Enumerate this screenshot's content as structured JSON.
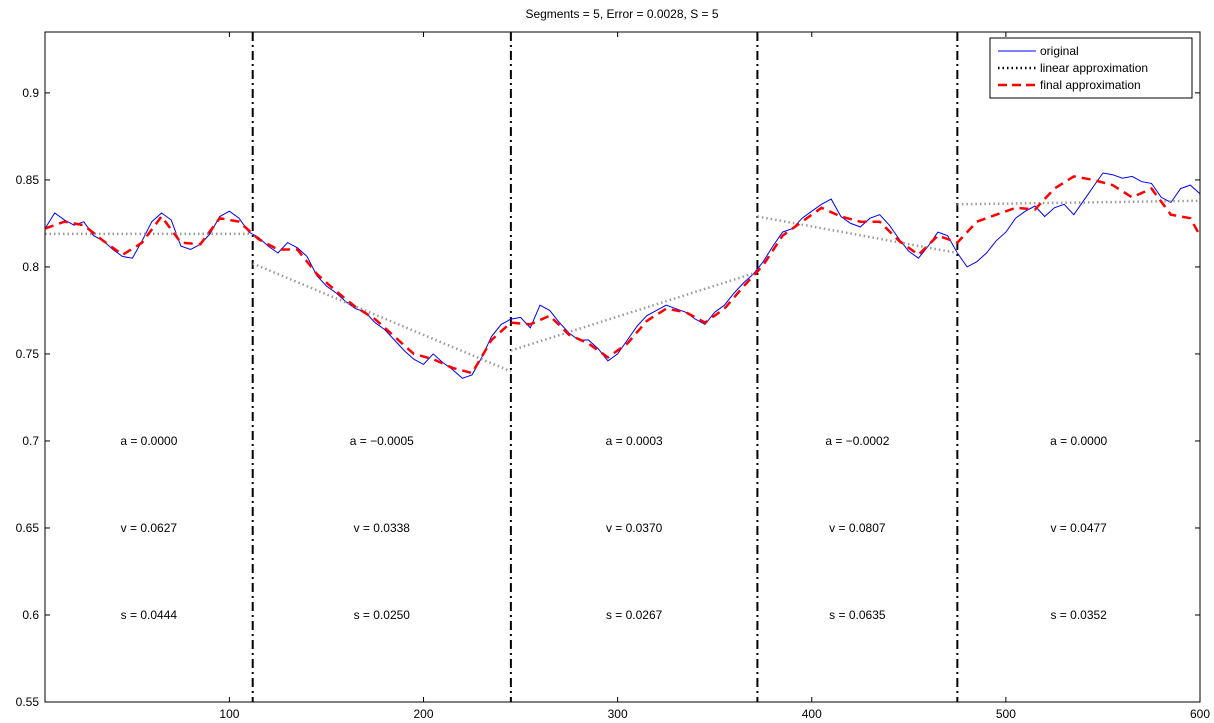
{
  "chart_data": {
    "type": "line",
    "title": "Segments = 5,  Error = 0.0028, S = 5",
    "xlabel": "",
    "ylabel": "",
    "xlim": [
      5,
      600
    ],
    "ylim": [
      0.55,
      0.935
    ],
    "xticks": [
      100,
      200,
      300,
      400,
      500,
      600
    ],
    "xtick_labels": [
      "100",
      "200",
      "300",
      "400",
      "500",
      "600"
    ],
    "yticks": [
      0.55,
      0.6,
      0.65,
      0.7,
      0.75,
      0.8,
      0.85,
      0.9
    ],
    "ytick_labels": [
      "0.55",
      "0.6",
      "0.65",
      "0.7",
      "0.75",
      "0.8",
      "0.85",
      "0.9"
    ],
    "grid": false,
    "legend_position": "top-right",
    "segment_boundaries": [
      112,
      245,
      372,
      475
    ],
    "series": [
      {
        "name": "original",
        "color": "#0000ff",
        "style": "solid",
        "x": [
          5,
          10,
          15,
          20,
          25,
          30,
          35,
          40,
          45,
          50,
          55,
          60,
          65,
          70,
          75,
          80,
          85,
          90,
          95,
          100,
          105,
          110,
          115,
          120,
          125,
          130,
          135,
          140,
          145,
          150,
          155,
          160,
          165,
          170,
          175,
          180,
          185,
          190,
          195,
          200,
          205,
          210,
          215,
          220,
          225,
          230,
          235,
          240,
          245,
          250,
          255,
          260,
          265,
          270,
          275,
          280,
          285,
          290,
          295,
          300,
          305,
          310,
          315,
          320,
          325,
          330,
          335,
          340,
          345,
          350,
          355,
          360,
          365,
          370,
          375,
          380,
          385,
          390,
          395,
          400,
          405,
          410,
          415,
          420,
          425,
          430,
          435,
          440,
          445,
          450,
          455,
          460,
          465,
          470,
          475,
          480,
          485,
          490,
          495,
          500,
          505,
          510,
          515,
          520,
          525,
          530,
          535,
          540,
          545,
          550,
          555,
          560,
          565,
          570,
          575,
          580,
          585,
          590,
          595,
          600
        ],
        "y": [
          0.822,
          0.831,
          0.827,
          0.824,
          0.826,
          0.818,
          0.815,
          0.81,
          0.806,
          0.805,
          0.815,
          0.826,
          0.831,
          0.827,
          0.812,
          0.81,
          0.813,
          0.819,
          0.829,
          0.832,
          0.828,
          0.82,
          0.817,
          0.812,
          0.808,
          0.814,
          0.811,
          0.806,
          0.795,
          0.789,
          0.785,
          0.78,
          0.776,
          0.774,
          0.768,
          0.764,
          0.758,
          0.752,
          0.747,
          0.744,
          0.75,
          0.745,
          0.741,
          0.736,
          0.738,
          0.748,
          0.76,
          0.767,
          0.77,
          0.771,
          0.765,
          0.778,
          0.775,
          0.768,
          0.762,
          0.758,
          0.758,
          0.753,
          0.746,
          0.75,
          0.758,
          0.766,
          0.772,
          0.775,
          0.778,
          0.776,
          0.774,
          0.77,
          0.767,
          0.774,
          0.778,
          0.785,
          0.791,
          0.796,
          0.803,
          0.812,
          0.82,
          0.822,
          0.828,
          0.832,
          0.836,
          0.839,
          0.829,
          0.825,
          0.823,
          0.828,
          0.83,
          0.824,
          0.816,
          0.809,
          0.805,
          0.812,
          0.82,
          0.818,
          0.808,
          0.8,
          0.803,
          0.808,
          0.815,
          0.82,
          0.828,
          0.832,
          0.835,
          0.829,
          0.834,
          0.836,
          0.83,
          0.838,
          0.846,
          0.854,
          0.853,
          0.851,
          0.852,
          0.849,
          0.848,
          0.84,
          0.837,
          0.845,
          0.847,
          0.842
        ]
      },
      {
        "name": "linear approximation",
        "color": "#999999",
        "style": "dotted",
        "segments": [
          {
            "x": [
              5,
              112
            ],
            "y": [
              0.819,
              0.819
            ]
          },
          {
            "x": [
              112,
              245
            ],
            "y": [
              0.802,
              0.74
            ]
          },
          {
            "x": [
              245,
              372
            ],
            "y": [
              0.752,
              0.797
            ]
          },
          {
            "x": [
              372,
              475
            ],
            "y": [
              0.829,
              0.808
            ]
          },
          {
            "x": [
              475,
              600
            ],
            "y": [
              0.836,
              0.838
            ]
          }
        ]
      },
      {
        "name": "final approximation",
        "color": "#ff0000",
        "style": "dashed",
        "x": [
          5,
          15,
          25,
          35,
          45,
          55,
          65,
          75,
          85,
          95,
          105,
          115,
          125,
          135,
          145,
          155,
          165,
          175,
          185,
          195,
          205,
          215,
          225,
          235,
          245,
          255,
          265,
          275,
          285,
          295,
          305,
          315,
          325,
          335,
          345,
          355,
          365,
          375,
          385,
          395,
          405,
          415,
          425,
          435,
          445,
          455,
          465,
          475,
          485,
          495,
          505,
          515,
          525,
          535,
          545,
          555,
          565,
          575,
          585,
          595,
          600
        ],
        "y": [
          0.822,
          0.826,
          0.824,
          0.815,
          0.807,
          0.814,
          0.829,
          0.814,
          0.813,
          0.828,
          0.826,
          0.816,
          0.81,
          0.81,
          0.796,
          0.786,
          0.777,
          0.77,
          0.76,
          0.75,
          0.747,
          0.742,
          0.739,
          0.758,
          0.768,
          0.767,
          0.772,
          0.761,
          0.756,
          0.748,
          0.756,
          0.769,
          0.776,
          0.774,
          0.768,
          0.776,
          0.789,
          0.801,
          0.818,
          0.826,
          0.834,
          0.829,
          0.826,
          0.826,
          0.815,
          0.807,
          0.818,
          0.814,
          0.826,
          0.83,
          0.834,
          0.833,
          0.845,
          0.852,
          0.85,
          0.847,
          0.84,
          0.845,
          0.83,
          0.828,
          0.818
        ]
      }
    ],
    "annotations": {
      "a": [
        "a = 0.0000",
        "a = −0.0005",
        "a = 0.0003",
        "a = −0.0002",
        "a = 0.0000"
      ],
      "v": [
        "v = 0.0627",
        "v = 0.0338",
        "v = 0.0370",
        "v = 0.0807",
        "v = 0.0477"
      ],
      "s": [
        "s = 0.0444",
        "s = 0.0250",
        "s = 0.0267",
        "s = 0.0635",
        "s = 0.0352"
      ],
      "a_y": 0.7,
      "v_y": 0.65,
      "s_y": 0.6
    }
  }
}
